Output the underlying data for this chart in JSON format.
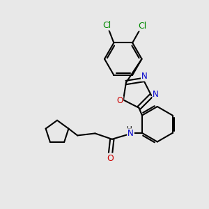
{
  "bg_color": "#e8e8e8",
  "bond_color": "#000000",
  "bond_width": 1.5,
  "atom_colors": {
    "C": "#000000",
    "N": "#0000cd",
    "O": "#cc0000",
    "Cl": "#008800",
    "H": "#000000"
  },
  "font_size": 8.5,
  "dbo_scale": 0.09
}
